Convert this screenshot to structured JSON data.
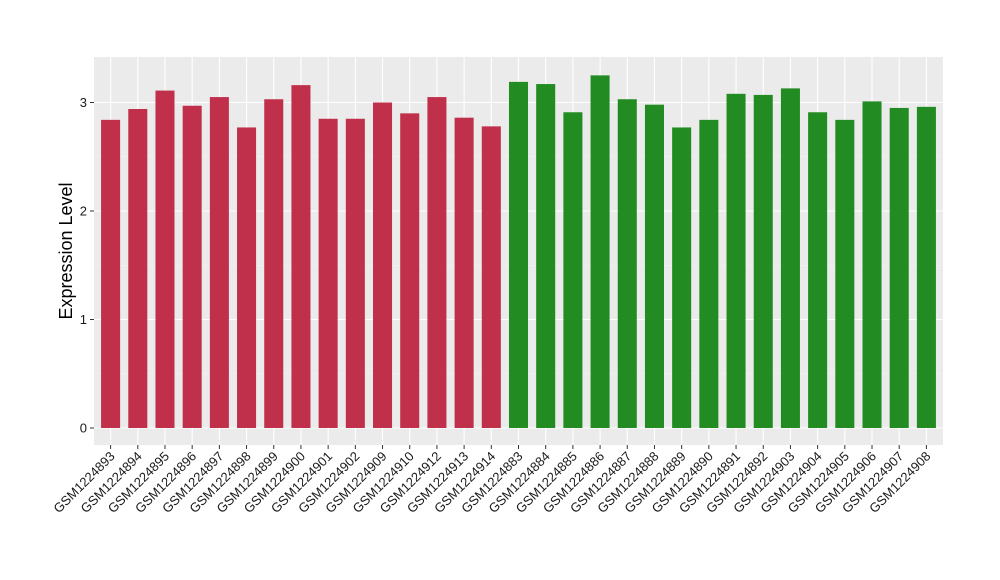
{
  "chart_data": {
    "type": "bar",
    "title": "",
    "xlabel": "",
    "ylabel": "Expression Level",
    "ylim": [
      0,
      3.4
    ],
    "yticks": [
      0,
      1,
      2,
      3
    ],
    "grid": true,
    "panel_background": "#EBEBEB",
    "categories": [
      "GSM1224893",
      "GSM1224894",
      "GSM1224895",
      "GSM1224896",
      "GSM1224897",
      "GSM1224898",
      "GSM1224899",
      "GSM1224900",
      "GSM1224901",
      "GSM1224902",
      "GSM1224909",
      "GSM1224910",
      "GSM1224912",
      "GSM1224913",
      "GSM1224914",
      "GSM1224883",
      "GSM1224884",
      "GSM1224885",
      "GSM1224886",
      "GSM1224887",
      "GSM1224888",
      "GSM1224889",
      "GSM1224890",
      "GSM1224891",
      "GSM1224892",
      "GSM1224903",
      "GSM1224904",
      "GSM1224905",
      "GSM1224906",
      "GSM1224907",
      "GSM1224908"
    ],
    "values": [
      2.84,
      2.94,
      3.11,
      2.97,
      3.05,
      2.77,
      3.03,
      3.16,
      2.85,
      2.85,
      3.0,
      2.9,
      3.05,
      2.86,
      2.78,
      3.19,
      3.17,
      2.91,
      3.25,
      3.03,
      2.98,
      2.77,
      2.84,
      3.08,
      3.07,
      3.13,
      2.91,
      2.84,
      3.01,
      2.95,
      2.96
    ],
    "bar_colors": [
      "#C0304A",
      "#C0304A",
      "#C0304A",
      "#C0304A",
      "#C0304A",
      "#C0304A",
      "#C0304A",
      "#C0304A",
      "#C0304A",
      "#C0304A",
      "#C0304A",
      "#C0304A",
      "#C0304A",
      "#C0304A",
      "#C0304A",
      "#228B22",
      "#228B22",
      "#228B22",
      "#228B22",
      "#228B22",
      "#228B22",
      "#228B22",
      "#228B22",
      "#228B22",
      "#228B22",
      "#228B22",
      "#228B22",
      "#228B22",
      "#228B22",
      "#228B22",
      "#228B22"
    ]
  }
}
